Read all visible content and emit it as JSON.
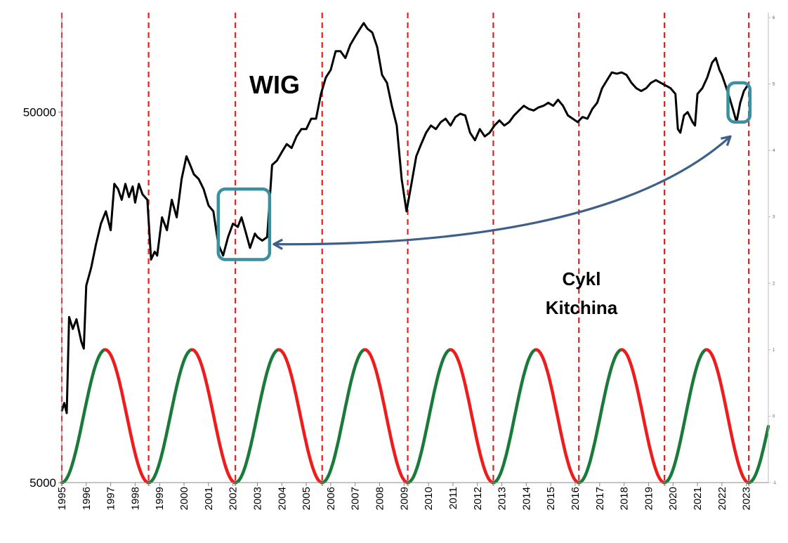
{
  "chart_data": {
    "type": "line",
    "title": "WIG",
    "annotation": [
      "Cykl",
      "Kitchina"
    ],
    "y_axis": {
      "scale": "log",
      "ticks": [
        5000,
        50000
      ],
      "ylim": [
        5000,
        90000
      ]
    },
    "y2_axis": {
      "ticks": [
        -1,
        0,
        1,
        2,
        3,
        4,
        5,
        6
      ],
      "ylim": [
        -1,
        6
      ]
    },
    "x_axis": {
      "range": [
        1995.0,
        2023.9
      ],
      "ticks": [
        "1995",
        "1996",
        "1997",
        "1998",
        "1999",
        "2000",
        "2001",
        "2002",
        "2003",
        "2004",
        "2005",
        "2006",
        "2007",
        "2008",
        "2009",
        "2010",
        "2011",
        "2012",
        "2013",
        "2014",
        "2015",
        "2016",
        "2017",
        "2018",
        "2019",
        "2020",
        "2021",
        "2022",
        "2023"
      ]
    },
    "cycle_boundaries": [
      1995.0,
      1998.55,
      2002.1,
      2005.65,
      2009.15,
      2012.65,
      2016.15,
      2019.65,
      2023.1
    ],
    "series": [
      {
        "name": "WIG",
        "color": "#000000",
        "points": [
          [
            1995.0,
            7800
          ],
          [
            1995.1,
            8200
          ],
          [
            1995.2,
            7700
          ],
          [
            1995.3,
            14000
          ],
          [
            1995.45,
            13000
          ],
          [
            1995.6,
            13800
          ],
          [
            1995.8,
            12000
          ],
          [
            1995.9,
            11500
          ],
          [
            1996.0,
            17000
          ],
          [
            1996.2,
            19000
          ],
          [
            1996.4,
            22000
          ],
          [
            1996.6,
            25000
          ],
          [
            1996.8,
            27000
          ],
          [
            1997.0,
            24000
          ],
          [
            1997.15,
            32000
          ],
          [
            1997.3,
            31000
          ],
          [
            1997.45,
            29000
          ],
          [
            1997.6,
            32000
          ],
          [
            1997.75,
            29500
          ],
          [
            1997.9,
            31500
          ],
          [
            1998.0,
            28500
          ],
          [
            1998.15,
            32000
          ],
          [
            1998.3,
            30000
          ],
          [
            1998.5,
            29000
          ],
          [
            1998.65,
            20000
          ],
          [
            1998.8,
            21000
          ],
          [
            1998.9,
            20500
          ],
          [
            1999.1,
            26000
          ],
          [
            1999.3,
            24000
          ],
          [
            1999.5,
            29000
          ],
          [
            1999.7,
            26000
          ],
          [
            1999.9,
            33000
          ],
          [
            2000.1,
            38000
          ],
          [
            2000.25,
            36000
          ],
          [
            2000.4,
            34000
          ],
          [
            2000.6,
            33000
          ],
          [
            2000.8,
            31000
          ],
          [
            2001.0,
            28000
          ],
          [
            2001.2,
            27000
          ],
          [
            2001.4,
            22000
          ],
          [
            2001.6,
            20500
          ],
          [
            2001.8,
            23000
          ],
          [
            2002.0,
            25000
          ],
          [
            2002.2,
            24500
          ],
          [
            2002.35,
            26000
          ],
          [
            2002.5,
            24000
          ],
          [
            2002.7,
            21500
          ],
          [
            2002.9,
            23500
          ],
          [
            2003.0,
            23000
          ],
          [
            2003.2,
            22500
          ],
          [
            2003.4,
            23000
          ],
          [
            2003.6,
            36000
          ],
          [
            2003.8,
            37000
          ],
          [
            2004.0,
            39000
          ],
          [
            2004.2,
            41000
          ],
          [
            2004.4,
            40000
          ],
          [
            2004.6,
            43000
          ],
          [
            2004.8,
            45000
          ],
          [
            2005.0,
            45000
          ],
          [
            2005.2,
            48000
          ],
          [
            2005.4,
            48000
          ],
          [
            2005.6,
            56000
          ],
          [
            2005.8,
            62000
          ],
          [
            2006.0,
            65000
          ],
          [
            2006.2,
            73000
          ],
          [
            2006.4,
            73000
          ],
          [
            2006.6,
            70000
          ],
          [
            2006.8,
            76000
          ],
          [
            2007.0,
            80000
          ],
          [
            2007.2,
            84000
          ],
          [
            2007.35,
            87000
          ],
          [
            2007.5,
            84000
          ],
          [
            2007.7,
            82000
          ],
          [
            2007.9,
            75000
          ],
          [
            2008.1,
            63000
          ],
          [
            2008.3,
            60000
          ],
          [
            2008.5,
            52000
          ],
          [
            2008.7,
            46000
          ],
          [
            2008.9,
            33000
          ],
          [
            2009.1,
            27000
          ],
          [
            2009.3,
            32000
          ],
          [
            2009.5,
            38000
          ],
          [
            2009.7,
            41000
          ],
          [
            2009.9,
            44000
          ],
          [
            2010.1,
            46000
          ],
          [
            2010.3,
            45000
          ],
          [
            2010.5,
            47000
          ],
          [
            2010.7,
            48000
          ],
          [
            2010.9,
            46000
          ],
          [
            2011.1,
            48500
          ],
          [
            2011.3,
            49500
          ],
          [
            2011.5,
            49000
          ],
          [
            2011.7,
            44000
          ],
          [
            2011.9,
            42000
          ],
          [
            2012.1,
            45000
          ],
          [
            2012.3,
            43000
          ],
          [
            2012.5,
            44000
          ],
          [
            2012.7,
            46000
          ],
          [
            2012.9,
            47500
          ],
          [
            2013.1,
            46000
          ],
          [
            2013.3,
            47000
          ],
          [
            2013.5,
            49000
          ],
          [
            2013.7,
            50500
          ],
          [
            2013.9,
            52000
          ],
          [
            2014.1,
            51000
          ],
          [
            2014.3,
            50500
          ],
          [
            2014.5,
            51500
          ],
          [
            2014.7,
            52000
          ],
          [
            2014.9,
            53000
          ],
          [
            2015.1,
            52000
          ],
          [
            2015.3,
            54000
          ],
          [
            2015.5,
            52000
          ],
          [
            2015.7,
            49000
          ],
          [
            2015.9,
            48000
          ],
          [
            2016.1,
            47000
          ],
          [
            2016.3,
            48500
          ],
          [
            2016.5,
            48000
          ],
          [
            2016.7,
            51000
          ],
          [
            2016.9,
            53000
          ],
          [
            2017.1,
            58000
          ],
          [
            2017.3,
            61000
          ],
          [
            2017.5,
            64000
          ],
          [
            2017.7,
            63500
          ],
          [
            2017.9,
            64000
          ],
          [
            2018.1,
            63000
          ],
          [
            2018.3,
            60000
          ],
          [
            2018.5,
            58000
          ],
          [
            2018.7,
            57000
          ],
          [
            2018.9,
            58000
          ],
          [
            2019.1,
            60000
          ],
          [
            2019.3,
            61000
          ],
          [
            2019.5,
            60000
          ],
          [
            2019.7,
            59000
          ],
          [
            2019.9,
            58000
          ],
          [
            2020.1,
            56000
          ],
          [
            2020.2,
            45000
          ],
          [
            2020.3,
            44000
          ],
          [
            2020.45,
            49000
          ],
          [
            2020.6,
            50000
          ],
          [
            2020.8,
            47000
          ],
          [
            2020.9,
            46000
          ],
          [
            2021.0,
            56000
          ],
          [
            2021.2,
            58000
          ],
          [
            2021.4,
            62000
          ],
          [
            2021.6,
            68000
          ],
          [
            2021.75,
            70000
          ],
          [
            2021.9,
            65000
          ],
          [
            2022.0,
            63000
          ],
          [
            2022.15,
            59000
          ],
          [
            2022.3,
            55000
          ],
          [
            2022.45,
            51000
          ],
          [
            2022.6,
            47000
          ],
          [
            2022.75,
            53000
          ],
          [
            2022.9,
            57000
          ],
          [
            2023.05,
            59000
          ]
        ]
      },
      {
        "name": "",
        "role": "cycle-rising",
        "color": "#1a7a3a",
        "values_axis": "right",
        "description_of_shape": "raised cosine between -1 and 1 per cycle"
      },
      {
        "name": "",
        "role": "cycle-falling",
        "color": "#ee1c1c",
        "values_axis": "right"
      }
    ],
    "highlight_boxes": [
      {
        "x_range": [
          2001.4,
          2003.5
        ],
        "y_range": [
          20000,
          31000
        ],
        "color": "#3a8fa0"
      },
      {
        "x_range": [
          2022.25,
          2023.15
        ],
        "y_range": [
          47000,
          60000
        ],
        "color": "#3a8fa0"
      }
    ],
    "arrow": {
      "from": [
        2022.35,
        43000
      ],
      "to": [
        2003.5,
        22000
      ],
      "color": "#3e5f8a"
    },
    "colors": {
      "wig_line": "#000000",
      "cycle_up": "#1a7a3a",
      "cycle_down": "#ee1c1c",
      "boundary": "#ee1c1c",
      "box": "#3a8fa0",
      "arrow": "#3e5f8a"
    }
  }
}
